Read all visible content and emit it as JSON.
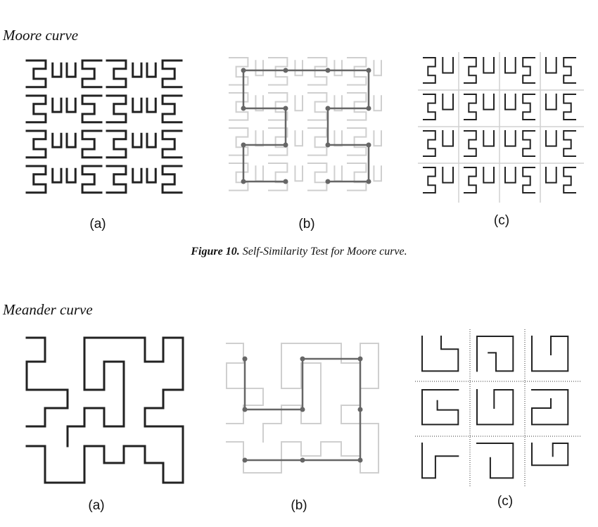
{
  "sections": [
    {
      "title": "Moore curve",
      "panels": [
        "(a)",
        "(b)",
        "(c)"
      ]
    },
    {
      "title": "Meander curve",
      "panels": [
        "(a)",
        "(b)",
        "(c)"
      ]
    }
  ],
  "caption": {
    "label": "Figure 10.",
    "text": "Self-Similarity Test for Moore curve."
  },
  "colors": {
    "curve": "#222222",
    "faint": "#cfcfcf",
    "overlay": "#666666",
    "grid": "#d0d0d0",
    "dots": "#999999"
  }
}
